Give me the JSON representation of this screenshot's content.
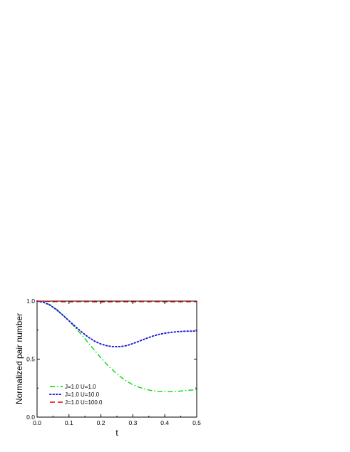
{
  "chart_data": {
    "type": "line",
    "title": "",
    "xlabel": "t",
    "ylabel": "Normalized pair number",
    "xlim": [
      0.0,
      0.5
    ],
    "ylim": [
      0.0,
      1.0
    ],
    "x_ticks": [
      "0.0",
      "0.1",
      "0.2",
      "0.3",
      "0.4",
      "0.5"
    ],
    "y_ticks": [
      "0.0",
      "0.5",
      "1.0"
    ],
    "grid": false,
    "legend_position": "bottom-left",
    "series": [
      {
        "name": "J=1.0 U=1.0",
        "color": "#00dd00",
        "dash": "dash-dot",
        "x": [
          0.0,
          0.02,
          0.04,
          0.06,
          0.08,
          0.1,
          0.12,
          0.14,
          0.16,
          0.18,
          0.2,
          0.22,
          0.24,
          0.26,
          0.28,
          0.3,
          0.32,
          0.34,
          0.36,
          0.38,
          0.4,
          0.42,
          0.44,
          0.46,
          0.48,
          0.5
        ],
        "y": [
          1.0,
          0.992,
          0.969,
          0.932,
          0.884,
          0.83,
          0.77,
          0.707,
          0.642,
          0.576,
          0.51,
          0.45,
          0.397,
          0.35,
          0.31,
          0.279,
          0.257,
          0.24,
          0.228,
          0.222,
          0.22,
          0.219,
          0.222,
          0.228,
          0.233,
          0.236
        ]
      },
      {
        "name": "J=1.0 U=10.0",
        "color": "#1f1fdd",
        "dash": "dot",
        "x": [
          0.0,
          0.02,
          0.04,
          0.06,
          0.08,
          0.1,
          0.12,
          0.14,
          0.16,
          0.18,
          0.2,
          0.22,
          0.24,
          0.26,
          0.28,
          0.3,
          0.32,
          0.34,
          0.36,
          0.38,
          0.4,
          0.42,
          0.44,
          0.46,
          0.48,
          0.5
        ],
        "y": [
          1.0,
          0.99,
          0.966,
          0.928,
          0.88,
          0.83,
          0.78,
          0.733,
          0.69,
          0.655,
          0.63,
          0.614,
          0.607,
          0.607,
          0.616,
          0.634,
          0.655,
          0.676,
          0.696,
          0.712,
          0.723,
          0.731,
          0.736,
          0.74,
          0.741,
          0.742
        ]
      },
      {
        "name": "J=1.0 U=100.0",
        "color": "#dd0000",
        "dash": "dash",
        "x": [
          0.0,
          0.05,
          0.1,
          0.15,
          0.2,
          0.25,
          0.3,
          0.35,
          0.4,
          0.45,
          0.5
        ],
        "y": [
          1.0,
          0.996,
          0.994,
          0.996,
          0.993,
          0.995,
          0.994,
          0.996,
          0.994,
          0.995,
          0.995
        ]
      }
    ]
  }
}
